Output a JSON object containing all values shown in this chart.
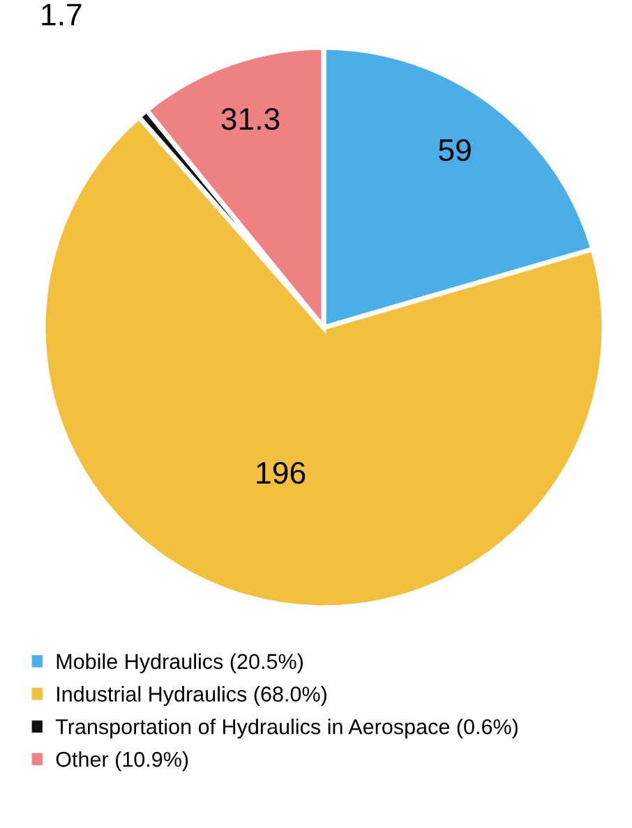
{
  "chart_data": {
    "type": "pie",
    "categories": [
      "Mobile Hydraulics (20.5%)",
      "Industrial Hydraulics (68.0%)",
      "Transportation of Hydraulics in Aerospace (0.6%)",
      "Other (10.9%)"
    ],
    "values": [
      59,
      196,
      1.7,
      31.3
    ],
    "colors": [
      "#4aaee8",
      "#f2bf3f",
      "#111111",
      "#ee8282"
    ],
    "data_labels": true,
    "legend": "bottom"
  }
}
